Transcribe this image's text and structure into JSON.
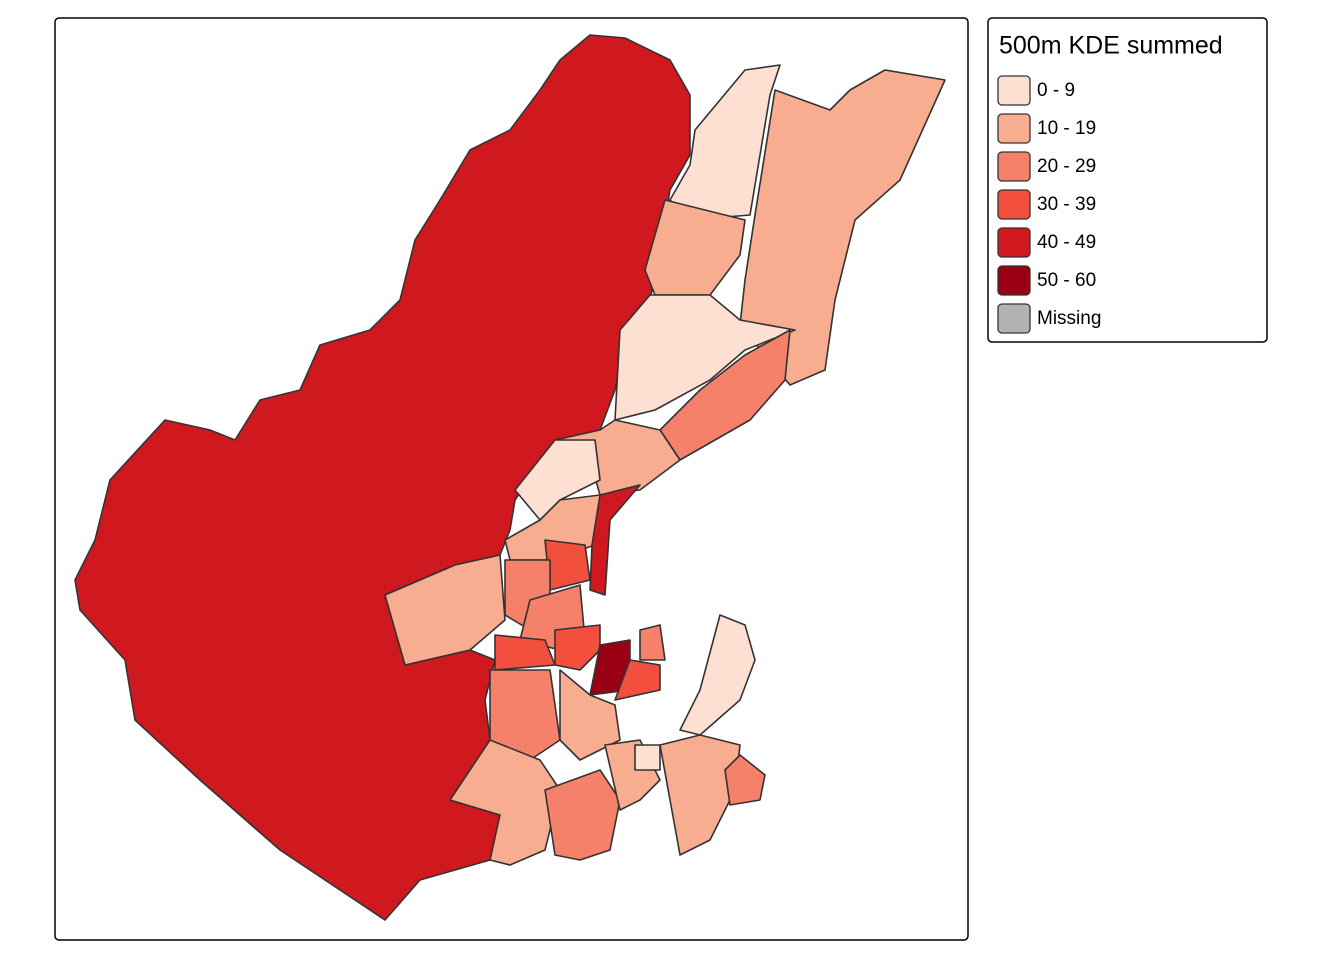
{
  "legend": {
    "title": "500m KDE summed",
    "items": [
      {
        "label": "0 - 9",
        "color": "#fde0d2"
      },
      {
        "label": "10 - 19",
        "color": "#f9ad90"
      },
      {
        "label": "20 - 29",
        "color": "#f6816a"
      },
      {
        "label": "30 - 39",
        "color": "#f24f3f"
      },
      {
        "label": "40 - 49",
        "color": "#d0191f"
      },
      {
        "label": "50 - 60",
        "color": "#990013"
      },
      {
        "label": "Missing",
        "color": "#b3b3b3"
      }
    ]
  }
}
